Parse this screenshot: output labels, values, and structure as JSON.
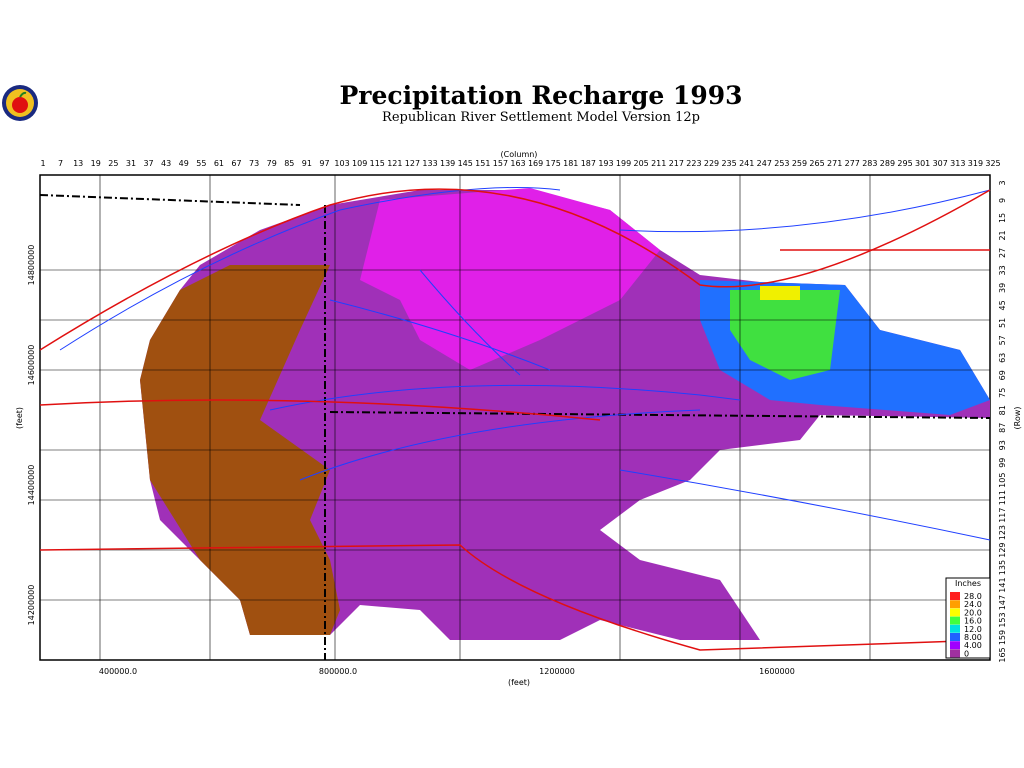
{
  "header": {
    "title": "Precipitation Recharge 1993",
    "subtitle": "Republican River Settlement Model Version 12p"
  },
  "axes": {
    "column_label": "(Column)",
    "row_label": "(Row)",
    "x_label": "(feet)",
    "y_label": "(feet)",
    "columns": [
      "1",
      "7",
      "13",
      "19",
      "25",
      "31",
      "37",
      "43",
      "49",
      "55",
      "61",
      "67",
      "73",
      "79",
      "85",
      "91",
      "97",
      "103",
      "109",
      "115",
      "121",
      "127",
      "133",
      "139",
      "145",
      "151",
      "157",
      "163",
      "169",
      "175",
      "181",
      "187",
      "193",
      "199",
      "205",
      "211",
      "217",
      "223",
      "229",
      "235",
      "241",
      "247",
      "253",
      "259",
      "265",
      "271",
      "277",
      "283",
      "289",
      "295",
      "301",
      "307",
      "313",
      "319",
      "325"
    ],
    "rows": [
      "3",
      "9",
      "15",
      "21",
      "27",
      "33",
      "39",
      "45",
      "51",
      "57",
      "63",
      "69",
      "75",
      "81",
      "87",
      "93",
      "99",
      "105",
      "111",
      "117",
      "123",
      "129",
      "135",
      "141",
      "147",
      "153",
      "159",
      "165"
    ],
    "x_ticks": [
      "400000.0",
      "800000.0",
      "1200000",
      "1600000"
    ],
    "y_ticks": [
      "14800000",
      "14600000",
      "14400000",
      "14200000"
    ]
  },
  "legend": {
    "title": "Inches",
    "items": [
      {
        "label": "28.0",
        "color": "#ff2020"
      },
      {
        "label": "24.0",
        "color": "#ffa000"
      },
      {
        "label": "20.0",
        "color": "#ffff00"
      },
      {
        "label": "16.0",
        "color": "#40ff40"
      },
      {
        "label": "12.0",
        "color": "#00e0e0"
      },
      {
        "label": "8.00",
        "color": "#2060ff"
      },
      {
        "label": "4.00",
        "color": "#a000ff"
      },
      {
        "label": "0",
        "color": "#a030a0"
      }
    ]
  }
}
